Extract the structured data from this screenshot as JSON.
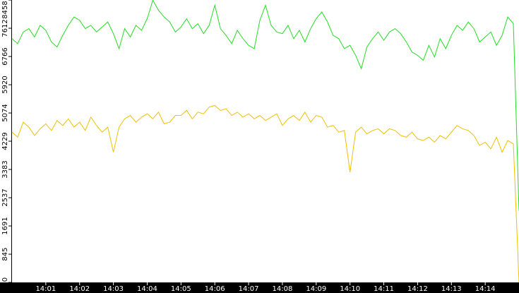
{
  "chart_data": {
    "type": "line",
    "x": [
      0,
      10,
      20,
      30,
      40,
      50,
      60,
      70,
      80,
      90,
      100,
      110,
      120,
      130,
      140,
      150,
      160,
      170,
      180,
      190,
      200,
      210,
      220,
      230,
      240,
      250,
      260,
      270,
      280,
      290,
      300,
      310,
      320,
      330,
      340,
      350,
      360,
      370,
      380,
      390,
      400,
      410,
      420,
      430,
      440,
      450,
      460,
      470,
      480,
      490,
      500,
      510,
      520,
      530,
      540,
      550,
      560,
      570,
      580,
      590,
      600,
      610,
      620,
      630,
      640,
      650,
      660,
      670,
      680,
      690,
      700,
      710,
      720,
      730,
      740,
      750,
      760,
      770,
      780,
      790,
      800,
      810,
      820,
      830,
      840,
      850,
      860,
      870,
      880,
      890,
      900
    ],
    "series": [
      {
        "color": "#22dd22",
        "values": [
          7300,
          7150,
          7500,
          7600,
          7350,
          7700,
          7550,
          7200,
          7050,
          7400,
          7700,
          7950,
          7850,
          7600,
          7700,
          7500,
          7650,
          7800,
          7450,
          7000,
          7600,
          7350,
          7700,
          7550,
          7900,
          8450,
          8150,
          7950,
          7800,
          7500,
          7650,
          7900,
          7600,
          7750,
          7450,
          7700,
          8300,
          7600,
          7400,
          7150,
          7550,
          7300,
          7100,
          7000,
          7850,
          8300,
          7700,
          7500,
          7450,
          7700,
          7300,
          7550,
          7200,
          7600,
          7900,
          8100,
          7800,
          7400,
          7300,
          7000,
          7100,
          6800,
          6400,
          7050,
          7300,
          7500,
          7250,
          7500,
          7600,
          7450,
          7200,
          6900,
          6800,
          6650,
          7100,
          6750,
          7300,
          7000,
          7400,
          7700,
          7550,
          7800,
          7600,
          7200,
          7350,
          7500,
          7100,
          7400,
          7950,
          7750,
          2150
        ]
      },
      {
        "color": "#f0c000",
        "values": [
          4500,
          4350,
          4800,
          4650,
          4400,
          4600,
          4750,
          4550,
          4850,
          4700,
          4900,
          4650,
          4800,
          4550,
          4950,
          4700,
          4500,
          4650,
          3900,
          4650,
          4900,
          5000,
          4800,
          4950,
          5050,
          4900,
          5100,
          4750,
          4800,
          5000,
          5000,
          5150,
          4900,
          5100,
          5050,
          5250,
          5300,
          5150,
          5200,
          5000,
          5100,
          4950,
          5050,
          4900,
          5000,
          4850,
          4950,
          5050,
          4700,
          4900,
          5000,
          4850,
          5100,
          4800,
          5000,
          4950,
          4650,
          4700,
          4500,
          4550,
          3300,
          4500,
          4650,
          4450,
          4550,
          4600,
          4450,
          4600,
          4550,
          4400,
          4350,
          4500,
          4300,
          4250,
          4350,
          4200,
          4400,
          4300,
          4500,
          4700,
          4600,
          4550,
          4400,
          4100,
          4200,
          4000,
          4350,
          3900,
          4250,
          4150,
          0
        ]
      }
    ],
    "xlim": [
      0,
      900
    ],
    "xticks": [
      {
        "value": 60,
        "label": "14:01"
      },
      {
        "value": 120,
        "label": "14:02"
      },
      {
        "value": 180,
        "label": "14:03"
      },
      {
        "value": 240,
        "label": "14:04"
      },
      {
        "value": 300,
        "label": "14:05"
      },
      {
        "value": 360,
        "label": "14:06"
      },
      {
        "value": 420,
        "label": "14:07"
      },
      {
        "value": 480,
        "label": "14:08"
      },
      {
        "value": 540,
        "label": "14:09"
      },
      {
        "value": 600,
        "label": "14:10"
      },
      {
        "value": 660,
        "label": "14:11"
      },
      {
        "value": 720,
        "label": "14:12"
      },
      {
        "value": 780,
        "label": "14:13"
      },
      {
        "value": 840,
        "label": "14:14"
      }
    ],
    "ylim": [
      0,
      8458
    ],
    "yticks": [
      0,
      845,
      1691,
      2537,
      3383,
      4229,
      5074,
      5920,
      6766,
      7612,
      8458
    ]
  }
}
